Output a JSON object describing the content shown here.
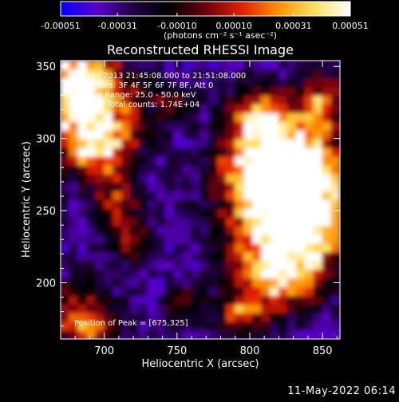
{
  "colorbar": {
    "tick_labels": [
      "-0.00051",
      "-0.00031",
      "-0.00010",
      "0.00010",
      "0.00031",
      "0.00051"
    ],
    "tick_values": [
      -0.00051,
      -0.00031,
      -0.0001,
      0.0001,
      0.00031,
      0.00051
    ],
    "range": [
      -0.00051,
      0.00051
    ],
    "units_label": "(photons cm⁻² s⁻¹ asec⁻²)",
    "colormap": [
      "#0000ff",
      "#5a00c8",
      "#200040",
      "#000000",
      "#6a0010",
      "#e02000",
      "#ff9000",
      "#ffe060",
      "#ffffff"
    ]
  },
  "chart_data": {
    "type": "heatmap",
    "title": "Reconstructed RHESSI Image",
    "xlabel": "Heliocentric X (arcsec)",
    "ylabel": "Heliocentric Y (arcsec)",
    "xlim": [
      670,
      862
    ],
    "ylim": [
      161,
      354
    ],
    "x_ticks": [
      700,
      750,
      800,
      850
    ],
    "y_ticks": [
      200,
      250,
      300,
      350
    ],
    "x_tick_labels": [
      "700",
      "750",
      "800",
      "850"
    ],
    "y_tick_labels": [
      "200",
      "250",
      "300",
      "350"
    ],
    "annotations": [
      "24-Jan-2013 21:45:08.000 to 21:51:08.000",
      "Detectors: 3F 4F 5F 6F 7F 8F, Att 0",
      "Energy Range: 25.0 - 50.0 keV",
      "Clean    Total counts: 1.74E+04"
    ],
    "peak_label": "Position of Peak = [675,325]",
    "peak_position": [
      675,
      325
    ]
  },
  "footer": {
    "date": "11-May-2022 06:14"
  }
}
